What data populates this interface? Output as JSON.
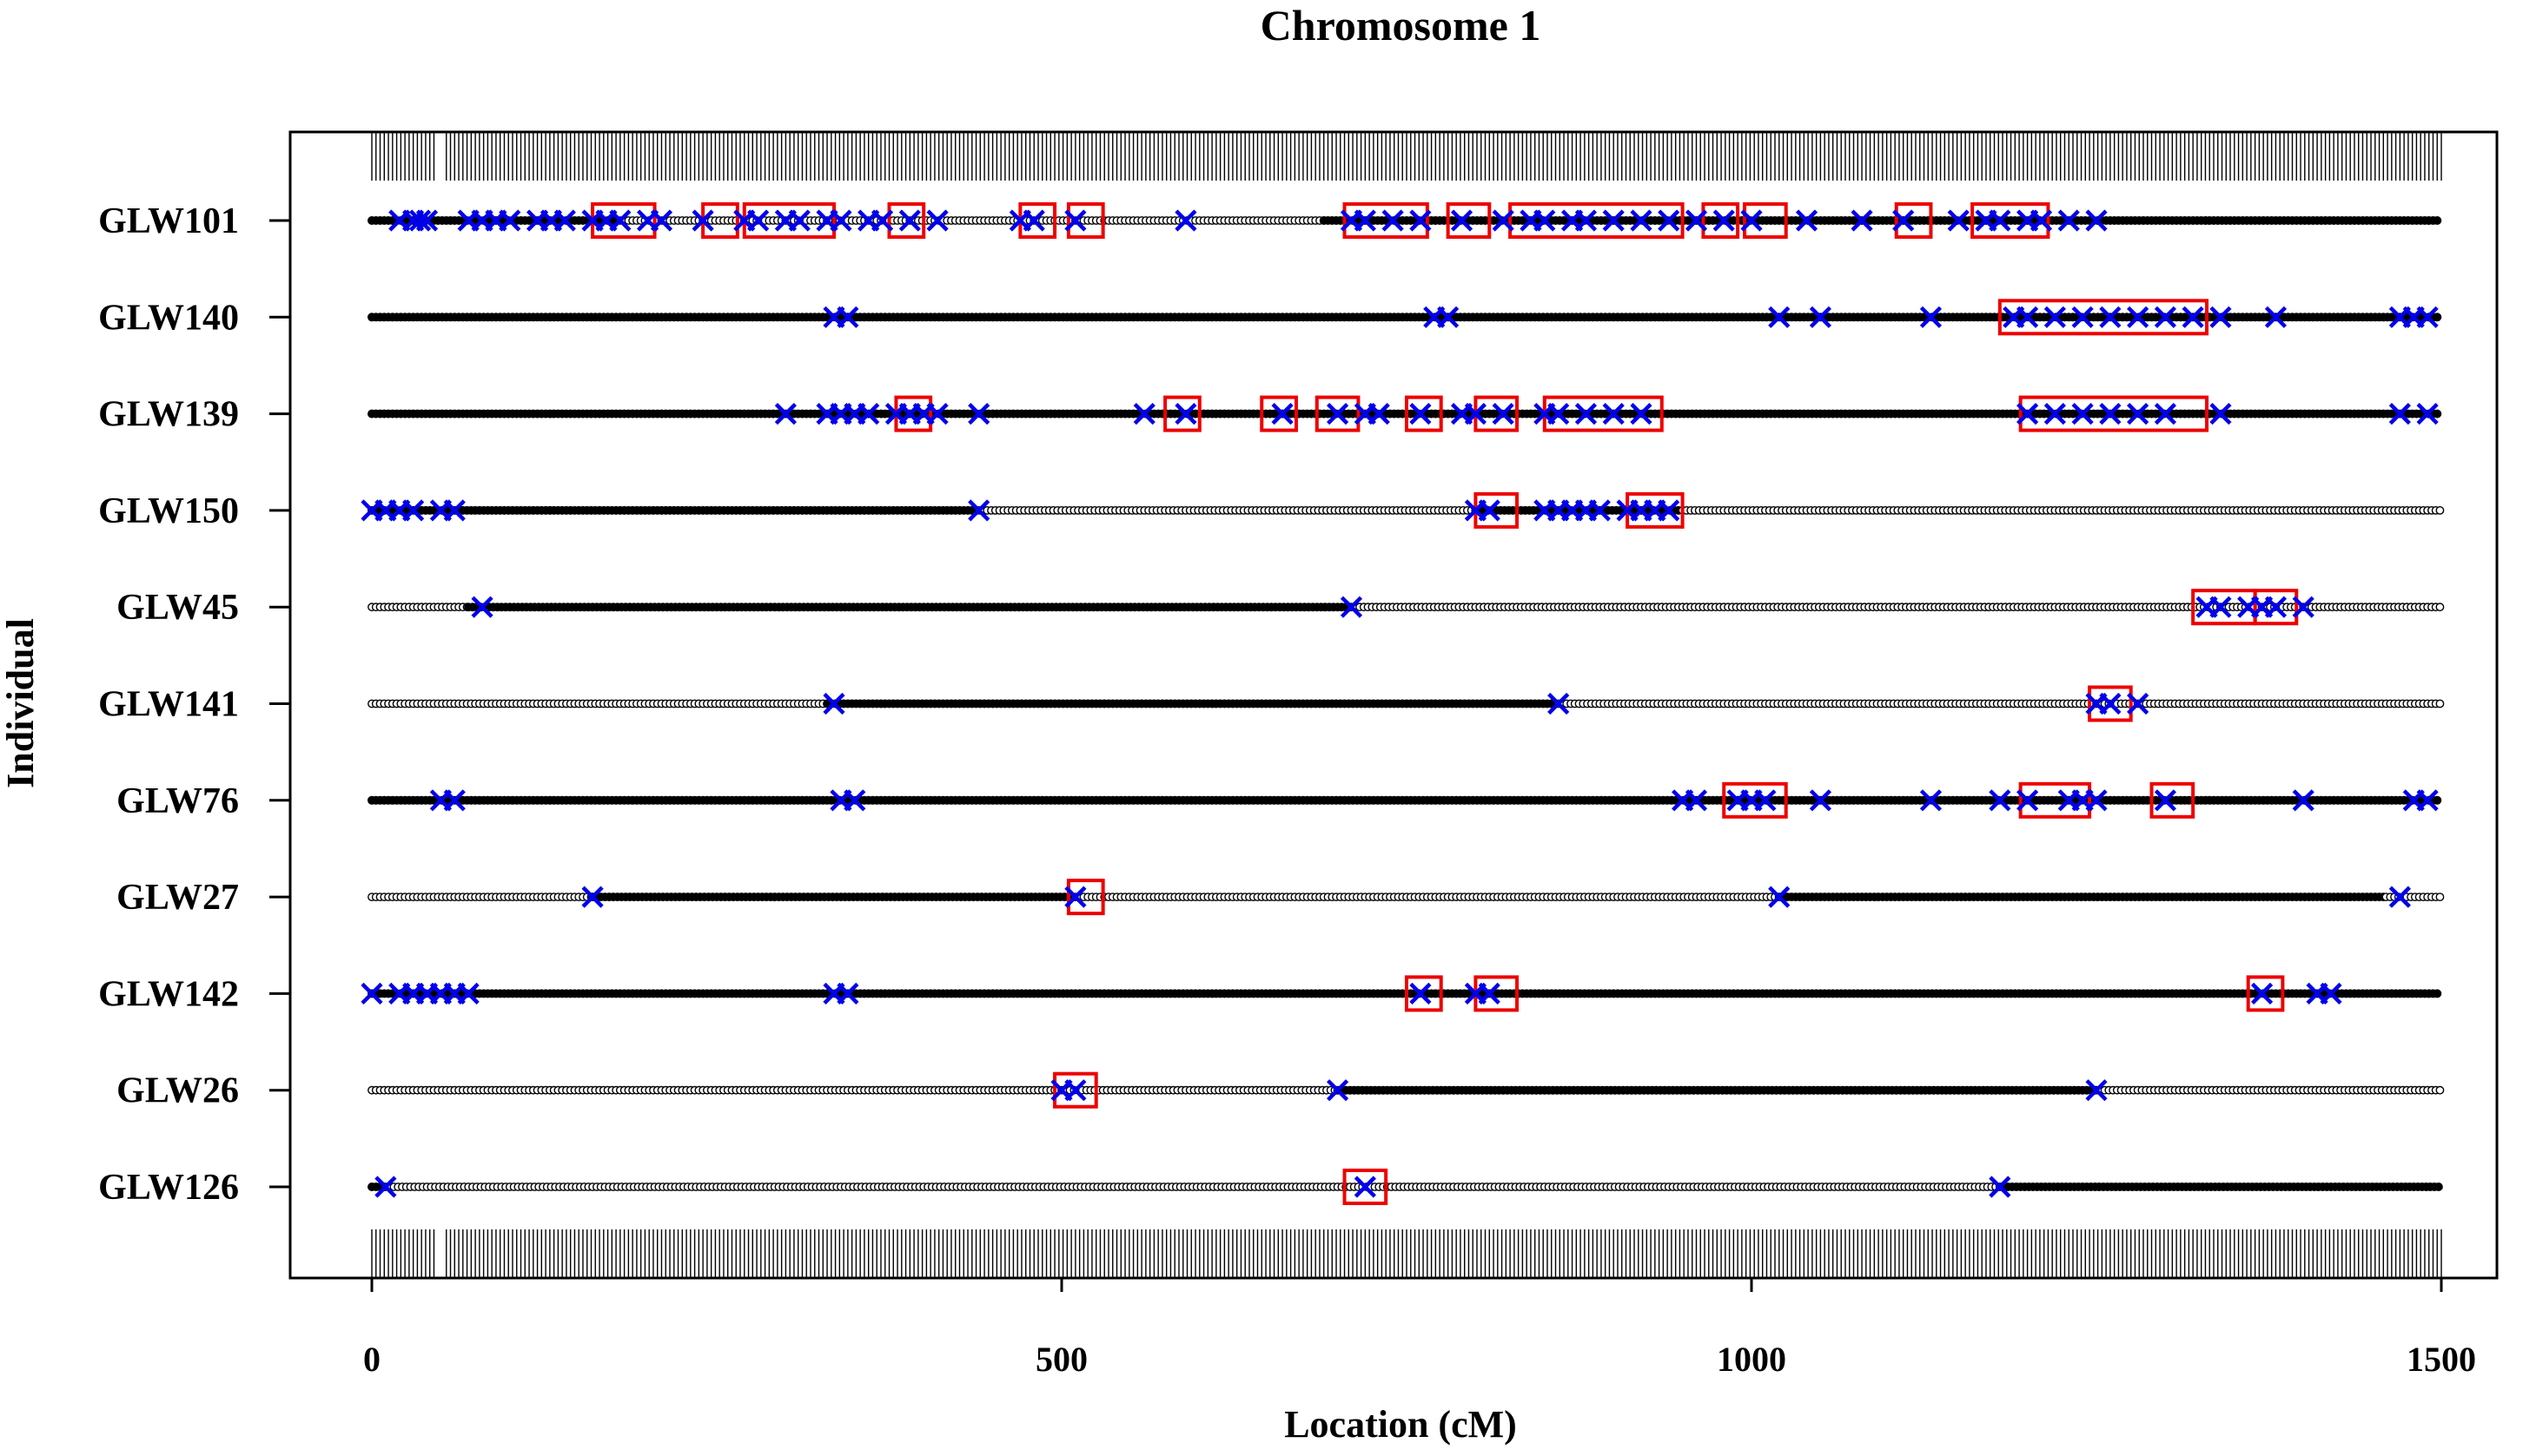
{
  "chart_data": {
    "type": "scatter",
    "title": "Chromosome 1",
    "xlabel": "Location (cM)",
    "ylabel": "Individual",
    "xlim": [
      0,
      1500
    ],
    "x_ticks": [
      0,
      500,
      1000,
      1500
    ],
    "grid": false,
    "legend": "none",
    "individuals": [
      "GLW101",
      "GLW140",
      "GLW139",
      "GLW150",
      "GLW45",
      "GLW141",
      "GLW76",
      "GLW27",
      "GLW142",
      "GLW26",
      "GLW126"
    ],
    "marker_interval_cM": 3,
    "colors": {
      "genotype": "#000000",
      "crossover": "#0000ee",
      "box": "#ee0000"
    },
    "rows": [
      {
        "name": "GLW101",
        "segments": [
          [
            0,
            180,
            "filled"
          ],
          [
            180,
            420,
            "open"
          ],
          [
            420,
            690,
            "open"
          ],
          [
            690,
            1500,
            "filled"
          ]
        ],
        "crossovers": [
          20,
          30,
          35,
          40,
          70,
          80,
          90,
          100,
          120,
          130,
          140,
          160,
          170,
          180,
          200,
          210,
          240,
          270,
          280,
          300,
          310,
          330,
          340,
          360,
          370,
          390,
          410,
          470,
          480,
          510,
          590,
          710,
          720,
          740,
          760,
          790,
          820,
          840,
          850,
          870,
          880,
          900,
          920,
          940,
          960,
          980,
          1000,
          1040,
          1080,
          1110,
          1150,
          1170,
          1180,
          1200,
          1210,
          1230,
          1250
        ],
        "boxes": [
          [
            160,
            205
          ],
          [
            240,
            265
          ],
          [
            270,
            335
          ],
          [
            375,
            400
          ],
          [
            470,
            495
          ],
          [
            505,
            530
          ],
          [
            705,
            765
          ],
          [
            780,
            810
          ],
          [
            825,
            950
          ],
          [
            965,
            990
          ],
          [
            995,
            1025
          ],
          [
            1105,
            1130
          ],
          [
            1160,
            1215
          ]
        ]
      },
      {
        "name": "GLW140",
        "segments": [
          [
            0,
            1500,
            "filled"
          ]
        ],
        "crossovers": [
          335,
          345,
          770,
          780,
          1020,
          1050,
          1130,
          1190,
          1200,
          1220,
          1240,
          1260,
          1280,
          1300,
          1320,
          1340,
          1380,
          1470,
          1480,
          1490
        ],
        "boxes": [
          [
            1180,
            1330
          ]
        ]
      },
      {
        "name": "GLW139",
        "segments": [
          [
            0,
            300,
            "filled"
          ],
          [
            300,
            1500,
            "filled"
          ]
        ],
        "crossovers": [
          300,
          330,
          340,
          350,
          360,
          380,
          390,
          400,
          410,
          440,
          560,
          590,
          660,
          700,
          720,
          730,
          760,
          790,
          800,
          820,
          850,
          860,
          880,
          900,
          920,
          1200,
          1220,
          1240,
          1260,
          1280,
          1300,
          1340,
          1470,
          1490
        ],
        "boxes": [
          [
            380,
            405
          ],
          [
            575,
            600
          ],
          [
            645,
            670
          ],
          [
            685,
            715
          ],
          [
            750,
            775
          ],
          [
            800,
            830
          ],
          [
            850,
            935
          ],
          [
            1195,
            1330
          ]
        ]
      },
      {
        "name": "GLW150",
        "segments": [
          [
            0,
            440,
            "filled"
          ],
          [
            440,
            800,
            "open"
          ],
          [
            800,
            950,
            "filled"
          ],
          [
            950,
            1500,
            "open"
          ]
        ],
        "crossovers": [
          0,
          10,
          20,
          30,
          50,
          60,
          440,
          800,
          810,
          850,
          860,
          870,
          880,
          890,
          910,
          920,
          930,
          940
        ],
        "boxes": [
          [
            800,
            830
          ],
          [
            910,
            950
          ]
        ]
      },
      {
        "name": "GLW45",
        "segments": [
          [
            0,
            70,
            "open"
          ],
          [
            70,
            710,
            "filled"
          ],
          [
            710,
            1500,
            "open"
          ]
        ],
        "crossovers": [
          80,
          710,
          1330,
          1340,
          1360,
          1370,
          1380,
          1400
        ],
        "boxes": [
          [
            1320,
            1365
          ],
          [
            1365,
            1395
          ]
        ]
      },
      {
        "name": "GLW141",
        "segments": [
          [
            0,
            330,
            "open"
          ],
          [
            330,
            860,
            "filled"
          ],
          [
            860,
            1500,
            "open"
          ]
        ],
        "crossovers": [
          335,
          860,
          1250,
          1260,
          1280
        ],
        "boxes": [
          [
            1245,
            1275
          ]
        ]
      },
      {
        "name": "GLW76",
        "segments": [
          [
            0,
            1500,
            "filled"
          ]
        ],
        "crossovers": [
          50,
          60,
          340,
          350,
          950,
          960,
          990,
          1000,
          1010,
          1050,
          1130,
          1180,
          1200,
          1230,
          1240,
          1250,
          1300,
          1400,
          1480,
          1490
        ],
        "boxes": [
          [
            980,
            1025
          ],
          [
            1195,
            1245
          ],
          [
            1290,
            1320
          ]
        ]
      },
      {
        "name": "GLW27",
        "segments": [
          [
            0,
            160,
            "open"
          ],
          [
            160,
            510,
            "filled"
          ],
          [
            510,
            1020,
            "open"
          ],
          [
            1020,
            1460,
            "filled"
          ],
          [
            1460,
            1500,
            "open"
          ]
        ],
        "crossovers": [
          160,
          510,
          1020,
          1470
        ],
        "boxes": [
          [
            505,
            530
          ]
        ]
      },
      {
        "name": "GLW142",
        "segments": [
          [
            0,
            1500,
            "filled"
          ]
        ],
        "crossovers": [
          0,
          20,
          30,
          40,
          50,
          60,
          70,
          335,
          345,
          760,
          800,
          810,
          1370,
          1410,
          1420
        ],
        "boxes": [
          [
            750,
            775
          ],
          [
            800,
            830
          ],
          [
            1360,
            1385
          ]
        ]
      },
      {
        "name": "GLW26",
        "segments": [
          [
            0,
            500,
            "open"
          ],
          [
            500,
            700,
            "open"
          ],
          [
            700,
            1250,
            "filled"
          ],
          [
            1250,
            1500,
            "open"
          ]
        ],
        "crossovers": [
          500,
          510,
          700,
          1250
        ],
        "boxes": [
          [
            495,
            525
          ]
        ]
      },
      {
        "name": "GLW126",
        "segments": [
          [
            0,
            10,
            "filled"
          ],
          [
            10,
            1180,
            "open"
          ],
          [
            1180,
            1500,
            "filled"
          ]
        ],
        "crossovers": [
          10,
          720,
          1180
        ],
        "boxes": [
          [
            705,
            735
          ]
        ]
      }
    ]
  }
}
